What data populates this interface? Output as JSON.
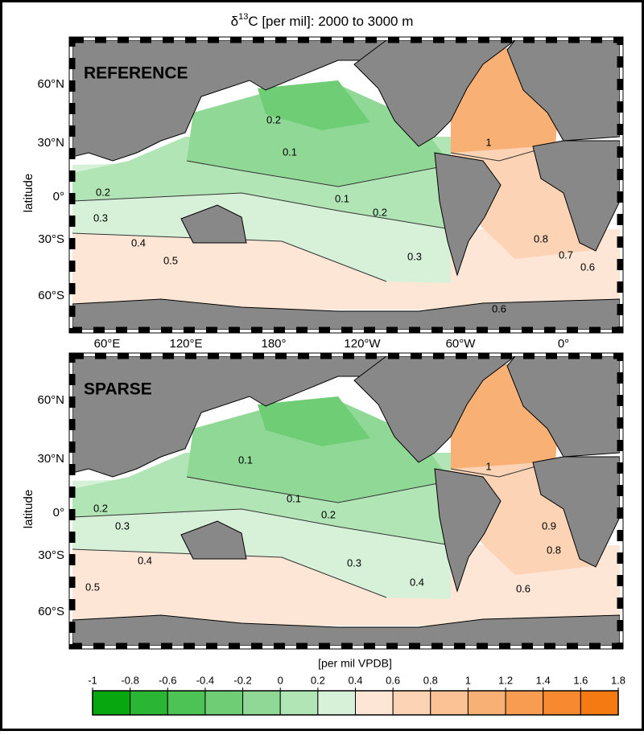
{
  "title": {
    "symbol": "δ",
    "sup": "13",
    "rest": "C [per mil]: 2000 to 3000 m"
  },
  "y_axis_label": "latitude",
  "lat_labels": [
    "60°N",
    "30°N",
    "0°",
    "30°S",
    "60°S"
  ],
  "lon_labels": [
    "60°E",
    "120°E",
    "180°",
    "120°W",
    "60°W",
    "0°"
  ],
  "panels": [
    {
      "label": "REFERENCE",
      "contour_labels": [
        0.2,
        0.1,
        0.1,
        0.2,
        0.3,
        0.4,
        0.5,
        0.3,
        1,
        0.8,
        0.7,
        0.6,
        0.6,
        0.2
      ]
    },
    {
      "label": "SPARSE",
      "contour_labels": [
        0.2,
        0.1,
        0.1,
        0.2,
        0.3,
        0.4,
        0.5,
        0.3,
        0.4,
        1,
        0.9,
        0.8,
        0.6
      ]
    }
  ],
  "colorbar": {
    "label": "[per mil VPDB]",
    "lim": [
      -1,
      1.8
    ],
    "ticks": [
      -1,
      -0.8,
      -0.6,
      -0.4,
      -0.2,
      0,
      0.2,
      0.4,
      0.6,
      0.8,
      1,
      1.2,
      1.4,
      1.6,
      1.8
    ],
    "colors": [
      "#07a80f",
      "#2bb534",
      "#4cc354",
      "#6fcd76",
      "#90d896",
      "#b2e5b5",
      "#d6f1d8",
      "#fde6d6",
      "#fcd3b5",
      "#fbc395",
      "#f9b074",
      "#f89c52",
      "#f78a31",
      "#f67a12"
    ]
  }
}
